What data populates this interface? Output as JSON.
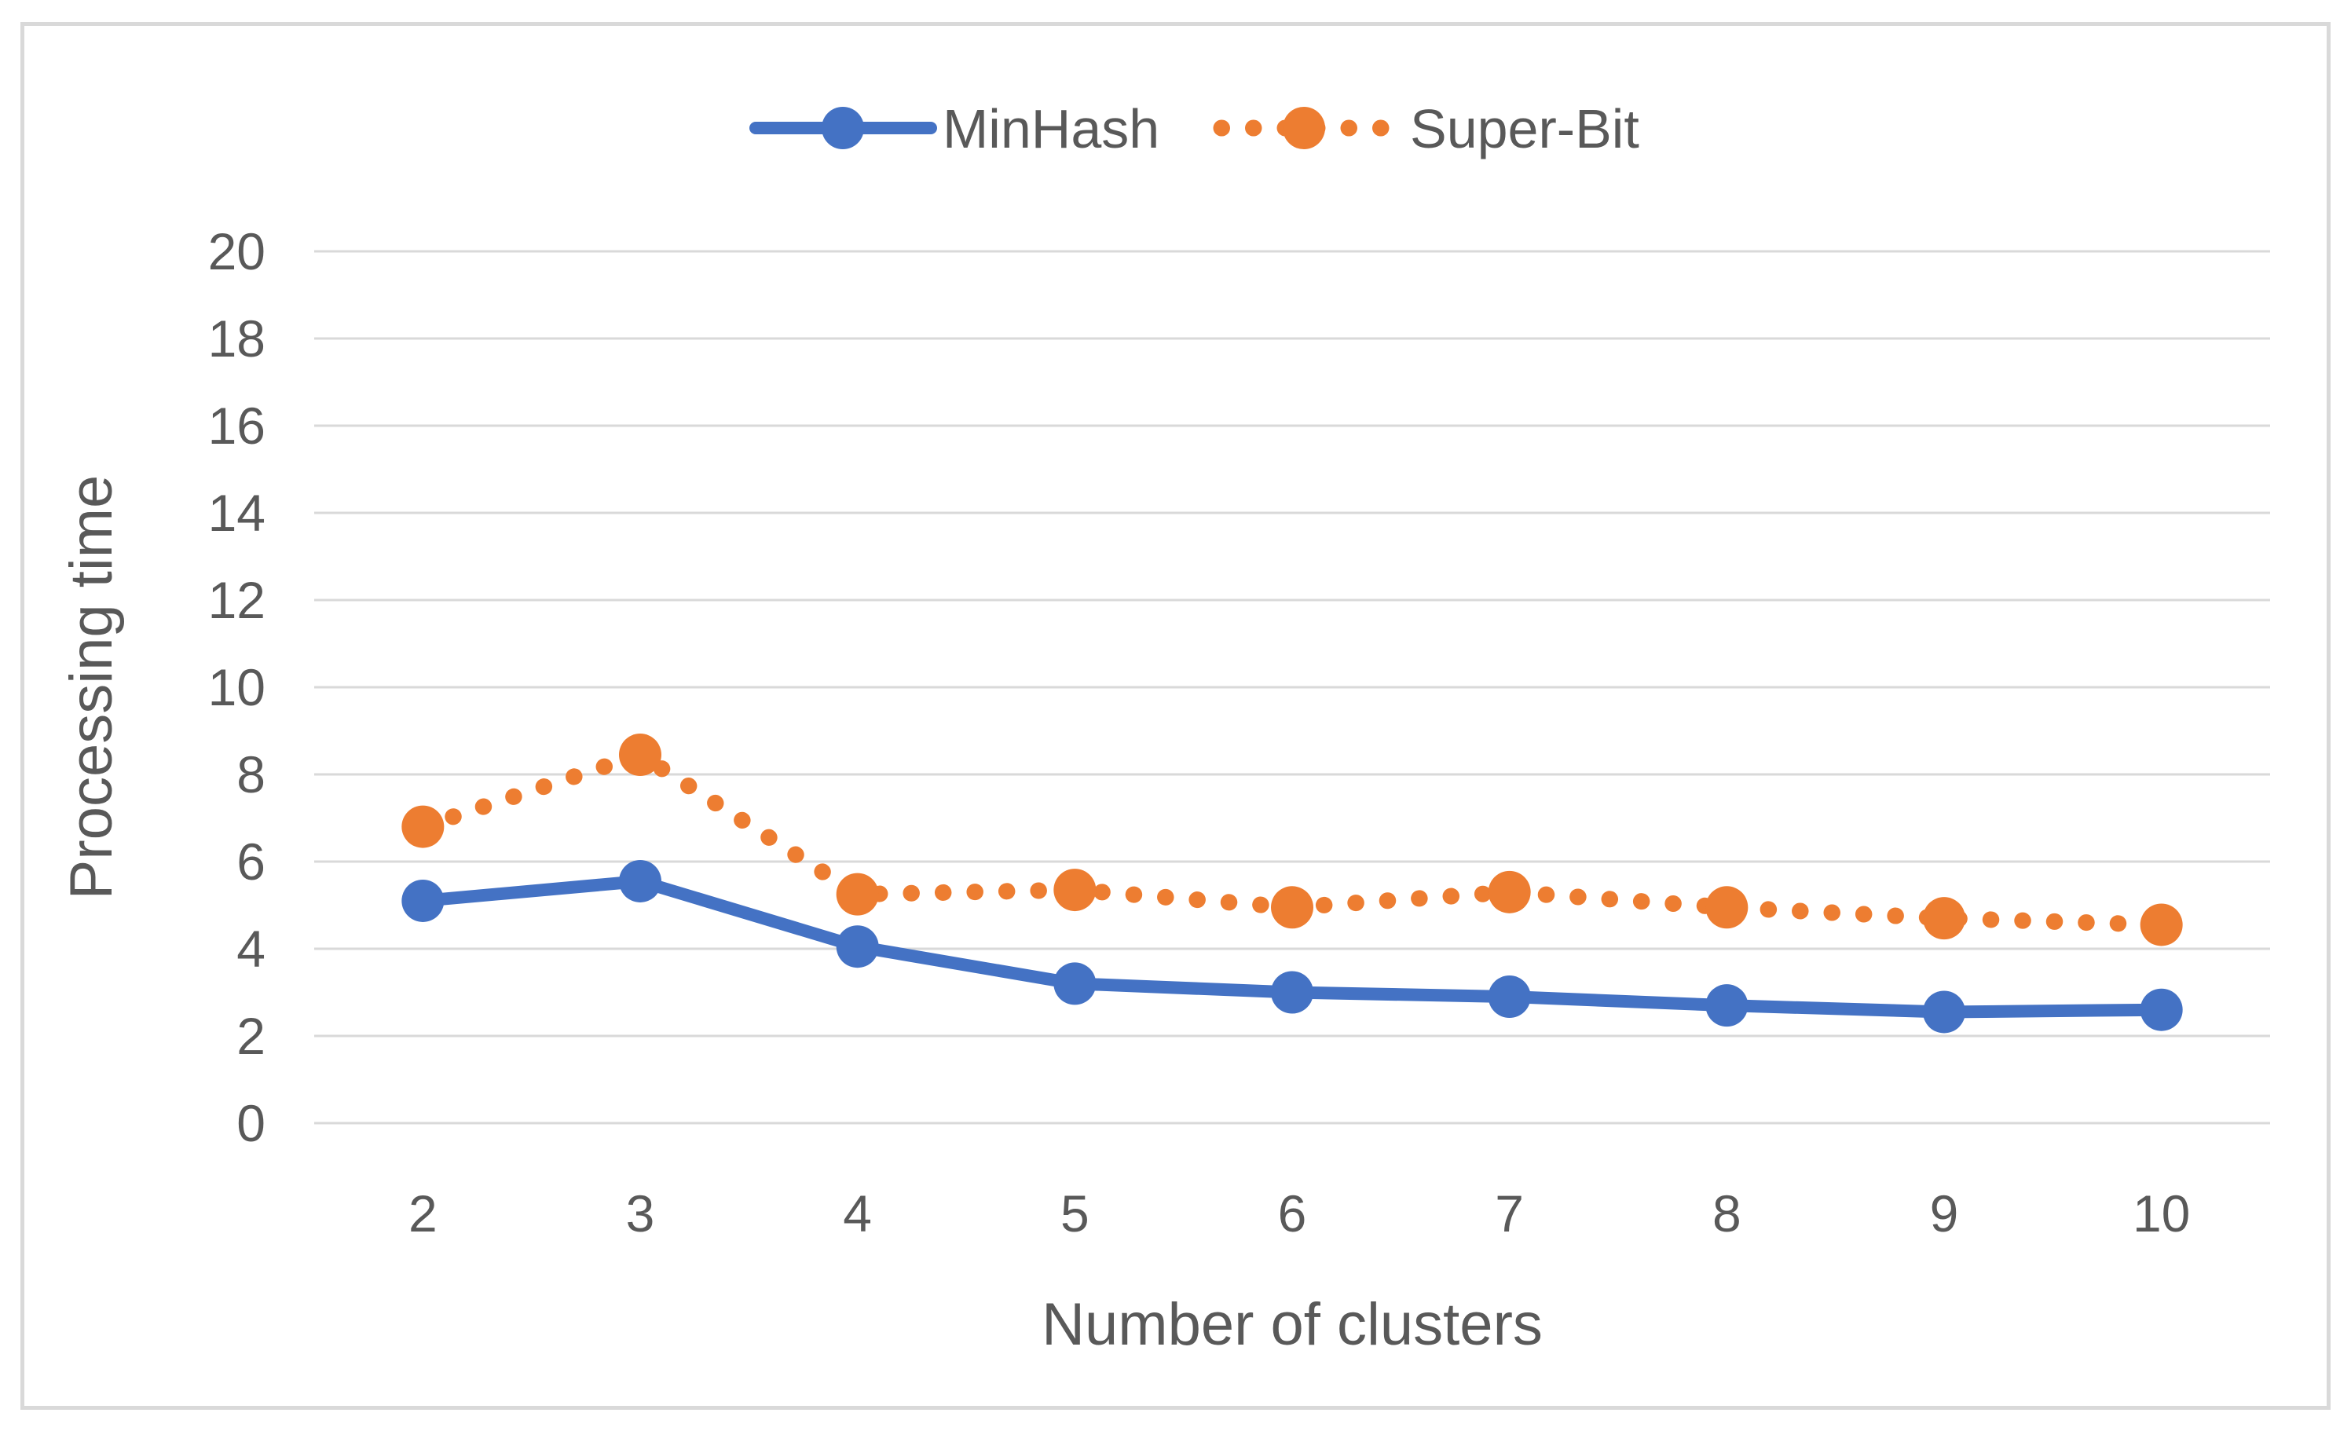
{
  "chart_data": {
    "type": "line",
    "title": "",
    "xlabel": "Number of clusters",
    "ylabel": "Processing time",
    "categories": [
      2,
      3,
      4,
      5,
      6,
      7,
      8,
      9,
      10
    ],
    "series": [
      {
        "name": "MinHash",
        "style": "solid",
        "color": "#4472C4",
        "values": [
          5.1,
          5.55,
          4.05,
          3.2,
          3.0,
          2.9,
          2.7,
          2.55,
          2.6
        ]
      },
      {
        "name": "Super-Bit",
        "style": "dotted",
        "color": "#ED7D31",
        "values": [
          6.8,
          8.45,
          5.25,
          5.35,
          4.95,
          5.3,
          4.95,
          4.7,
          4.55
        ]
      }
    ],
    "ylim": [
      0,
      20
    ],
    "ytick_step": 2,
    "grid": "horizontal",
    "legend_position": "top"
  },
  "colors": {
    "gridline": "#D9D9D9",
    "frame_border": "#D9D9D9",
    "text": "#595959",
    "background": "#FFFFFF"
  }
}
